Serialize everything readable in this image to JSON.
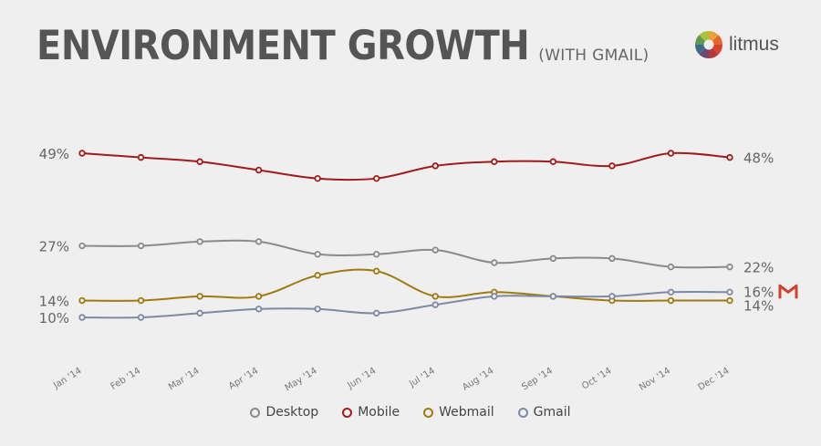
{
  "header": {
    "title": "ENVIRONMENT GROWTH",
    "subtitle": "(WITH GMAIL)"
  },
  "logo": {
    "text": "litmus"
  },
  "chart_data": {
    "type": "line",
    "categories": [
      "Jan '14",
      "Feb '14",
      "Mar '14",
      "Apr '14",
      "May '14",
      "Jun '14",
      "Jul '14",
      "Aug '14",
      "Sep '14",
      "Oct '14",
      "Nov '14",
      "Dec '14"
    ],
    "series": [
      {
        "name": "Desktop",
        "color": "#8a8a8e",
        "values": [
          27,
          27,
          28,
          28,
          25,
          25,
          26,
          23,
          24,
          24,
          22,
          22
        ]
      },
      {
        "name": "Mobile",
        "color": "#a01c1c",
        "values": [
          49,
          48,
          47,
          45,
          43,
          43,
          46,
          47,
          47,
          46,
          49,
          48
        ]
      },
      {
        "name": "Webmail",
        "color": "#a07a10",
        "values": [
          14,
          14,
          15,
          15,
          20,
          21,
          15,
          16,
          15,
          14,
          14,
          14
        ]
      },
      {
        "name": "Gmail",
        "color": "#7e8aa2",
        "values": [
          10,
          10,
          11,
          12,
          12,
          11,
          13,
          15,
          15,
          15,
          16,
          16
        ]
      }
    ],
    "start_labels": [
      {
        "text": "49%",
        "value": 49
      },
      {
        "text": "27%",
        "value": 27
      },
      {
        "text": "14%",
        "value": 14
      },
      {
        "text": "10%",
        "value": 10
      }
    ],
    "end_labels": [
      {
        "text": "48%",
        "value": 48
      },
      {
        "text": "22%",
        "value": 22
      },
      {
        "text": "16%",
        "value": 16
      },
      {
        "text": "14%",
        "value": 14
      }
    ],
    "end_icon": "gmail-icon",
    "ylim": [
      0,
      55
    ],
    "grid": false,
    "legend_position": "bottom"
  }
}
